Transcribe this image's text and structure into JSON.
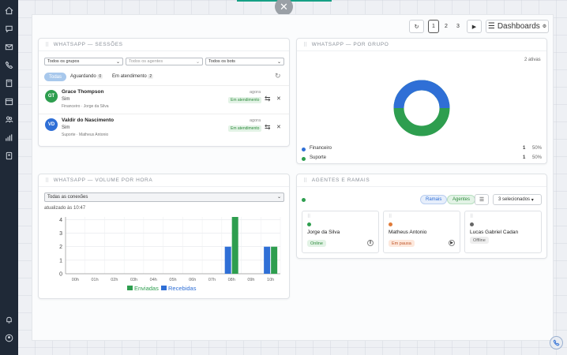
{
  "sidebar": {
    "icons": [
      "home-icon",
      "chat-icon",
      "mail-icon",
      "phone-icon",
      "building-icon",
      "calendar-icon",
      "users-icon",
      "bar-chart-icon",
      "contact-card-icon",
      "bell-icon",
      "user-circle-icon"
    ]
  },
  "toolbar": {
    "pages": [
      "1",
      "2",
      "3"
    ],
    "dashboards_label": "Dashboards"
  },
  "sessions": {
    "title": "WHATSAPP — SESSÕES",
    "filter_groups": "Todos os grupos",
    "filter_agents": "Todos os agentes",
    "filter_bots": "Todos os bots",
    "tabs": [
      {
        "label": "Todas",
        "count": ""
      },
      {
        "label": "Aguardando",
        "count": "0"
      },
      {
        "label": "Em atendimento",
        "count": "2"
      }
    ],
    "items": [
      {
        "initials": "GT",
        "name": "Grace Thompson",
        "sub": "Sim",
        "meta": "Financeiro · Jorge da Silva",
        "time": "agora",
        "status": "Em atendimento",
        "color": "#2e9e4f"
      },
      {
        "initials": "VD",
        "name": "Valdir do Nascimento",
        "sub": "Sim",
        "meta": "Suporte · Matheus Antonio",
        "time": "agora",
        "status": "Em atendimento",
        "color": "#2f6fd6"
      }
    ]
  },
  "groups": {
    "title": "WHATSAPP — POR GRUPO",
    "active_label": "2 ativas",
    "rows": [
      {
        "name": "Financeiro",
        "count": "1",
        "pct": "50%",
        "color": "#2f6fd6"
      },
      {
        "name": "Suporte",
        "count": "1",
        "pct": "50%",
        "color": "#2e9e4f"
      }
    ]
  },
  "volume": {
    "title": "WHATSAPP — VOLUME POR HORA",
    "connection_select": "Todas as conexões",
    "updated": "atualizado às 10:47",
    "legend_sent": "Enviadas",
    "legend_received": "Recebidas"
  },
  "agents": {
    "title": "AGENTES E RAMAIS",
    "btn_ramais": "Ramais",
    "btn_agentes": "Agentes",
    "selected": "3 selecionados",
    "list": [
      {
        "name": "Jorge da Silva",
        "status": "Online",
        "dot": "#2e9e4f",
        "pill_bg": "#e3f3e6",
        "pill_fg": "#2e8b3d"
      },
      {
        "name": "Matheus Antonio",
        "status": "Em pausa",
        "dot": "#e07b39",
        "pill_bg": "#fde8dc",
        "pill_fg": "#c0562a"
      },
      {
        "name": "Lucas Gabriel Cadan",
        "status": "Offline",
        "dot": "#666666",
        "pill_bg": "#eeeeee",
        "pill_fg": "#666666"
      }
    ]
  },
  "chart_data": {
    "type": "bar",
    "categories": [
      "00h",
      "01h",
      "02h",
      "03h",
      "04h",
      "05h",
      "06h",
      "07h",
      "08h",
      "09h",
      "10h"
    ],
    "series": [
      {
        "name": "Enviadas",
        "color": "#2e9e4f",
        "values": [
          0,
          0,
          0,
          0,
          0,
          0,
          0,
          0,
          4.2,
          0,
          2
        ]
      },
      {
        "name": "Recebidas",
        "color": "#2f6fd6",
        "values": [
          0,
          0,
          0,
          0,
          0,
          0,
          0,
          0,
          2,
          0,
          2
        ]
      }
    ],
    "yticks": [
      "0",
      "1",
      "2",
      "3",
      "4"
    ],
    "ylim": [
      0,
      4.2
    ],
    "grid": true,
    "legend": "bottom"
  }
}
